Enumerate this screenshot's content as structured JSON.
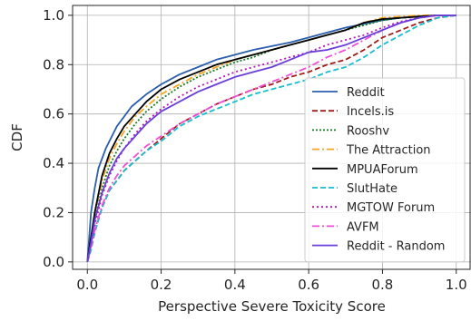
{
  "chart_data": {
    "type": "line",
    "title": "",
    "xlabel": "Perspective Severe Toxicity Score",
    "ylabel": "CDF",
    "xlim": [
      -0.04,
      1.04
    ],
    "ylim": [
      -0.03,
      1.04
    ],
    "xticks": [
      0.0,
      0.2,
      0.4,
      0.6,
      0.8,
      1.0
    ],
    "xtick_labels": [
      "0.0",
      "0.2",
      "0.4",
      "0.6",
      "0.8",
      "1.0"
    ],
    "yticks": [
      0.0,
      0.2,
      0.4,
      0.6,
      0.8,
      1.0
    ],
    "ytick_labels": [
      "0.0",
      "0.2",
      "0.4",
      "0.6",
      "0.8",
      "1.0"
    ],
    "grid": true,
    "legend_position": "lower-right",
    "series": [
      {
        "name": "Reddit",
        "color": "#2b5fad",
        "dash": "solid",
        "x": [
          0,
          0.01,
          0.02,
          0.03,
          0.05,
          0.08,
          0.12,
          0.16,
          0.2,
          0.25,
          0.3,
          0.35,
          0.4,
          0.45,
          0.5,
          0.55,
          0.6,
          0.65,
          0.7,
          0.75,
          0.8,
          0.85,
          0.9,
          0.95,
          1.0
        ],
        "y": [
          0,
          0.2,
          0.3,
          0.38,
          0.46,
          0.55,
          0.63,
          0.68,
          0.72,
          0.76,
          0.79,
          0.82,
          0.84,
          0.86,
          0.875,
          0.89,
          0.91,
          0.93,
          0.95,
          0.965,
          0.98,
          0.99,
          0.995,
          1.0,
          1.0
        ]
      },
      {
        "name": "Incels.is",
        "color": "#a01c1c",
        "dash": "6,3",
        "x": [
          0,
          0.01,
          0.02,
          0.04,
          0.06,
          0.08,
          0.1,
          0.13,
          0.16,
          0.2,
          0.25,
          0.3,
          0.35,
          0.4,
          0.45,
          0.5,
          0.55,
          0.6,
          0.65,
          0.7,
          0.75,
          0.8,
          0.85,
          0.9,
          0.95,
          1.0
        ],
        "y": [
          0,
          0.05,
          0.12,
          0.22,
          0.29,
          0.33,
          0.37,
          0.41,
          0.45,
          0.5,
          0.56,
          0.6,
          0.64,
          0.67,
          0.7,
          0.72,
          0.75,
          0.77,
          0.8,
          0.82,
          0.86,
          0.91,
          0.94,
          0.97,
          0.99,
          1.0
        ]
      },
      {
        "name": "Rooshv",
        "color": "#1b7a2a",
        "dash": "2,2",
        "x": [
          0,
          0.01,
          0.02,
          0.04,
          0.06,
          0.08,
          0.1,
          0.13,
          0.16,
          0.2,
          0.25,
          0.3,
          0.35,
          0.4,
          0.45,
          0.5,
          0.55,
          0.6,
          0.65,
          0.7,
          0.75,
          0.8,
          0.85,
          0.9,
          0.95,
          1.0
        ],
        "y": [
          0,
          0.08,
          0.17,
          0.3,
          0.39,
          0.45,
          0.5,
          0.56,
          0.61,
          0.66,
          0.71,
          0.75,
          0.78,
          0.81,
          0.83,
          0.86,
          0.88,
          0.9,
          0.92,
          0.94,
          0.96,
          0.98,
          0.99,
          0.995,
          1.0,
          1.0
        ]
      },
      {
        "name": "The Attraction",
        "color": "#f5a623",
        "dash": "8,3,2,3",
        "x": [
          0,
          0.01,
          0.02,
          0.04,
          0.06,
          0.08,
          0.1,
          0.13,
          0.16,
          0.2,
          0.25,
          0.3,
          0.35,
          0.4,
          0.45,
          0.5,
          0.55,
          0.6,
          0.65,
          0.7,
          0.75,
          0.8,
          0.85,
          0.9,
          0.95,
          1.0
        ],
        "y": [
          0,
          0.09,
          0.19,
          0.33,
          0.42,
          0.48,
          0.53,
          0.59,
          0.63,
          0.68,
          0.72,
          0.76,
          0.79,
          0.82,
          0.84,
          0.86,
          0.88,
          0.9,
          0.92,
          0.94,
          0.97,
          0.99,
          0.995,
          1.0,
          1.0,
          1.0
        ]
      },
      {
        "name": "MPUAForum",
        "color": "#000000",
        "dash": "solid",
        "x": [
          0,
          0.01,
          0.02,
          0.04,
          0.06,
          0.08,
          0.1,
          0.13,
          0.16,
          0.2,
          0.25,
          0.3,
          0.35,
          0.4,
          0.45,
          0.5,
          0.55,
          0.6,
          0.65,
          0.7,
          0.75,
          0.8,
          0.85,
          0.9,
          0.95,
          1.0
        ],
        "y": [
          0,
          0.1,
          0.2,
          0.35,
          0.44,
          0.5,
          0.55,
          0.6,
          0.65,
          0.7,
          0.74,
          0.77,
          0.8,
          0.82,
          0.84,
          0.86,
          0.88,
          0.9,
          0.92,
          0.94,
          0.97,
          0.985,
          0.99,
          0.995,
          1.0,
          1.0
        ]
      },
      {
        "name": "SlutHate",
        "color": "#17becf",
        "dash": "6,3",
        "x": [
          0,
          0.01,
          0.02,
          0.04,
          0.06,
          0.08,
          0.1,
          0.13,
          0.16,
          0.2,
          0.25,
          0.3,
          0.35,
          0.4,
          0.45,
          0.5,
          0.55,
          0.6,
          0.65,
          0.7,
          0.75,
          0.8,
          0.85,
          0.9,
          0.95,
          1.0
        ],
        "y": [
          0,
          0.05,
          0.12,
          0.22,
          0.29,
          0.33,
          0.37,
          0.41,
          0.45,
          0.49,
          0.55,
          0.59,
          0.62,
          0.65,
          0.68,
          0.7,
          0.72,
          0.74,
          0.77,
          0.79,
          0.83,
          0.88,
          0.92,
          0.96,
          0.99,
          1.0
        ]
      },
      {
        "name": "MGTOW Forum",
        "color": "#b216b2",
        "dash": "2,3",
        "x": [
          0,
          0.01,
          0.02,
          0.04,
          0.06,
          0.08,
          0.1,
          0.13,
          0.16,
          0.2,
          0.25,
          0.3,
          0.35,
          0.4,
          0.45,
          0.5,
          0.55,
          0.6,
          0.65,
          0.7,
          0.75,
          0.8,
          0.85,
          0.9,
          0.95,
          1.0
        ],
        "y": [
          0,
          0.07,
          0.15,
          0.27,
          0.35,
          0.41,
          0.46,
          0.52,
          0.57,
          0.62,
          0.67,
          0.71,
          0.74,
          0.77,
          0.79,
          0.81,
          0.83,
          0.85,
          0.88,
          0.9,
          0.92,
          0.95,
          0.975,
          0.99,
          1.0,
          1.0
        ]
      },
      {
        "name": "AVFM",
        "color": "#ee4fd6",
        "dash": "8,3,2,3",
        "x": [
          0,
          0.01,
          0.02,
          0.04,
          0.06,
          0.08,
          0.1,
          0.13,
          0.16,
          0.2,
          0.25,
          0.3,
          0.35,
          0.4,
          0.45,
          0.5,
          0.55,
          0.6,
          0.65,
          0.7,
          0.75,
          0.8,
          0.85,
          0.9,
          0.95,
          1.0
        ],
        "y": [
          0,
          0.06,
          0.13,
          0.23,
          0.3,
          0.35,
          0.39,
          0.43,
          0.47,
          0.51,
          0.56,
          0.6,
          0.64,
          0.67,
          0.7,
          0.73,
          0.76,
          0.79,
          0.83,
          0.86,
          0.9,
          0.94,
          0.97,
          0.99,
          1.0,
          1.0
        ]
      },
      {
        "name": "Reddit - Random",
        "color": "#6a3fd9",
        "dash": "solid",
        "x": [
          0,
          0.01,
          0.02,
          0.04,
          0.06,
          0.08,
          0.1,
          0.13,
          0.16,
          0.2,
          0.25,
          0.3,
          0.35,
          0.4,
          0.45,
          0.5,
          0.55,
          0.6,
          0.65,
          0.7,
          0.75,
          0.8,
          0.85,
          0.9,
          0.95,
          1.0
        ],
        "y": [
          0,
          0.08,
          0.17,
          0.28,
          0.36,
          0.42,
          0.46,
          0.51,
          0.56,
          0.61,
          0.65,
          0.69,
          0.72,
          0.75,
          0.77,
          0.79,
          0.82,
          0.85,
          0.86,
          0.88,
          0.91,
          0.94,
          0.97,
          0.99,
          1.0,
          1.0
        ]
      }
    ]
  }
}
